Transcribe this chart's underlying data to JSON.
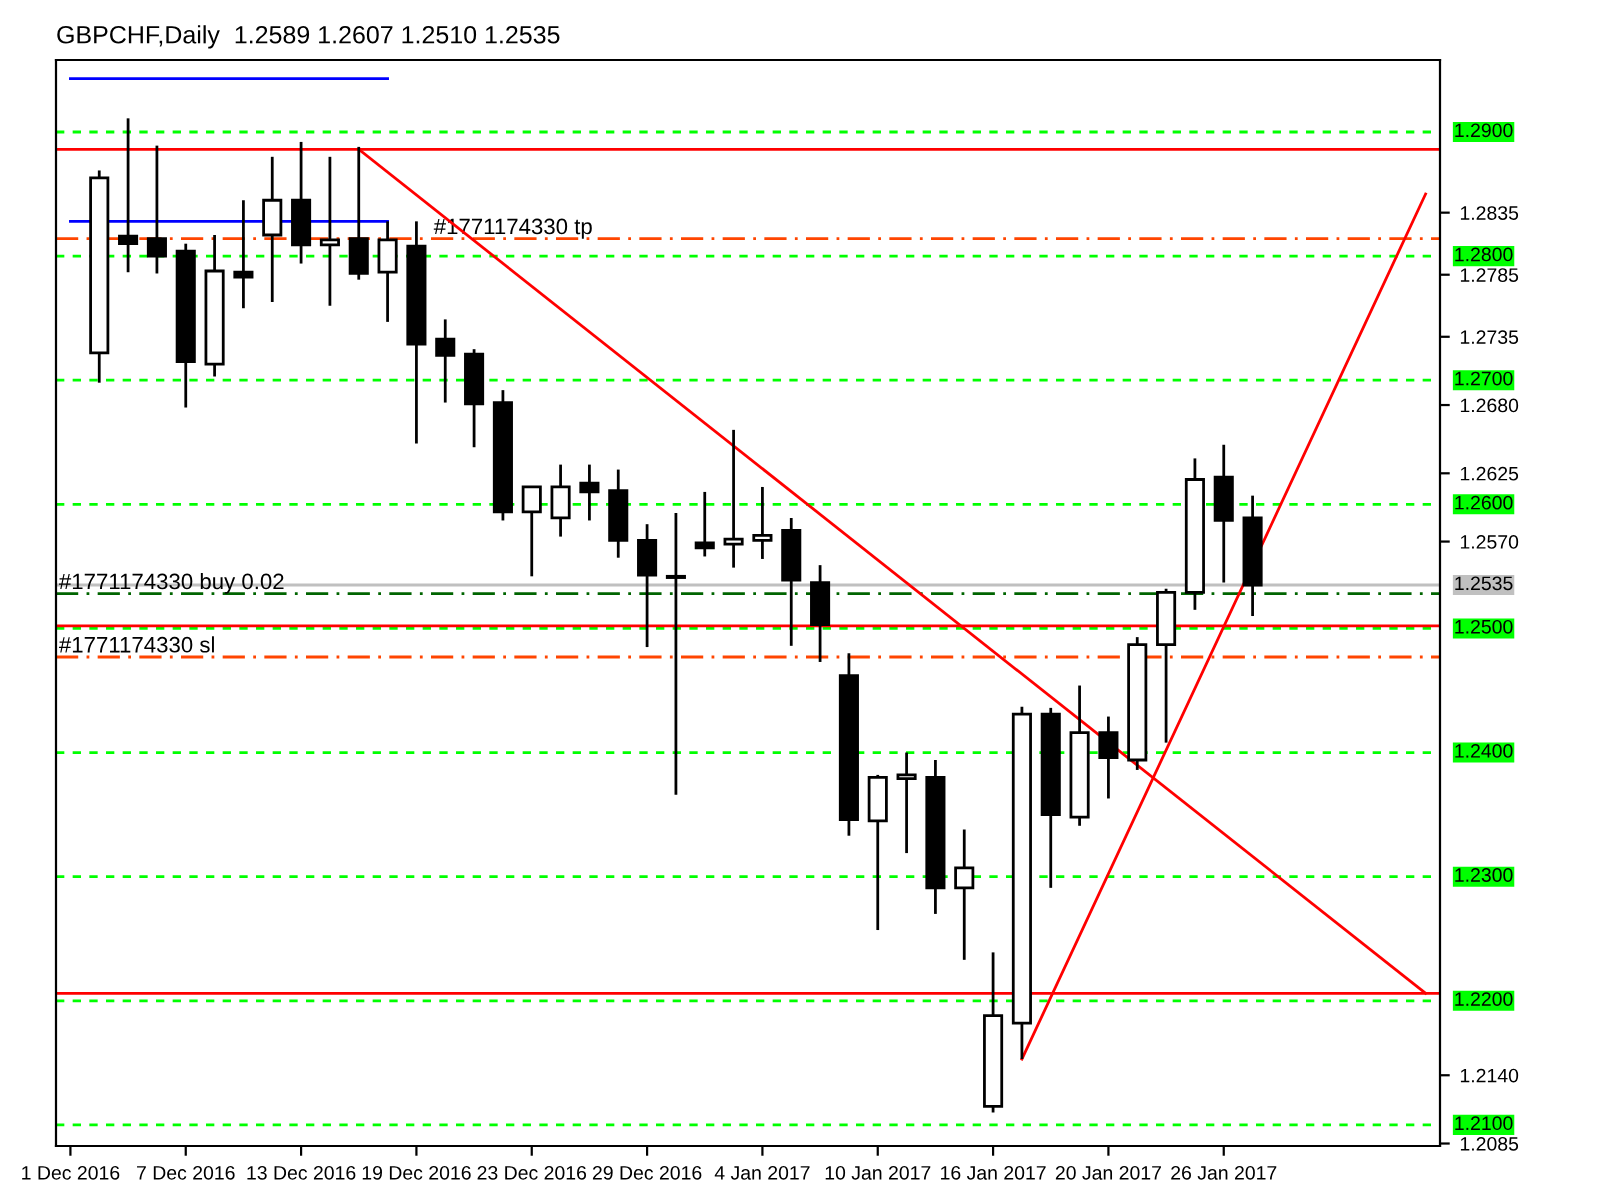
{
  "chart_data": {
    "type": "candlestick",
    "title": "GBPCHF,Daily  1.2589 1.2607 1.2510 1.2535",
    "categories": [
      "1 Dec 2016",
      null,
      null,
      null,
      "7 Dec 2016",
      null,
      null,
      null,
      "13 Dec 2016",
      null,
      null,
      null,
      "19 Dec 2016",
      null,
      null,
      null,
      "23 Dec 2016",
      null,
      null,
      null,
      "29 Dec 2016",
      null,
      null,
      null,
      "4 Jan 2017",
      null,
      null,
      null,
      "10 Jan 2017",
      null,
      null,
      null,
      "16 Jan 2017",
      null,
      null,
      null,
      "20 Jan 2017",
      null,
      null,
      null,
      "26 Jan 2017",
      null,
      null,
      null,
      null,
      null,
      null,
      null
    ],
    "ohlc": [
      null,
      [
        1.2722,
        1.2869,
        1.2698,
        1.2863
      ],
      [
        1.2816,
        1.2911,
        1.2787,
        1.281
      ],
      [
        1.2814,
        1.2889,
        1.2786,
        1.28
      ],
      [
        1.2804,
        1.281,
        1.2678,
        1.2715
      ],
      [
        1.2713,
        1.2817,
        1.2703,
        1.2788
      ],
      [
        1.2787,
        1.2845,
        1.2758,
        1.2783
      ],
      [
        1.2817,
        1.288,
        1.2763,
        1.2845
      ],
      [
        1.2845,
        1.2892,
        1.2794,
        1.2809
      ],
      [
        1.2809,
        1.288,
        1.276,
        1.2813
      ],
      [
        1.2814,
        1.2888,
        1.2781,
        1.2786
      ],
      [
        1.2787,
        1.2828,
        1.2747,
        1.2813
      ],
      [
        1.2808,
        1.2828,
        1.2649,
        1.2729
      ],
      [
        1.2733,
        1.2749,
        1.2682,
        1.272
      ],
      [
        1.2721,
        1.2725,
        1.2646,
        1.2681
      ],
      [
        1.2682,
        1.2692,
        1.2587,
        1.2594
      ],
      [
        1.2594,
        1.2614,
        1.2542,
        1.2614
      ],
      [
        1.2589,
        1.2632,
        1.2574,
        1.2614
      ],
      [
        1.2617,
        1.2632,
        1.2587,
        1.261
      ],
      [
        1.2611,
        1.2628,
        1.2557,
        1.2571
      ],
      [
        1.2571,
        1.2584,
        1.2485,
        1.2543
      ],
      [
        1.2542,
        1.2593,
        1.2366,
        1.2541
      ],
      [
        1.2569,
        1.261,
        1.2558,
        1.2565
      ],
      [
        1.2568,
        1.266,
        1.2549,
        1.2572
      ],
      [
        1.2571,
        1.2614,
        1.2556,
        1.2575
      ],
      [
        1.2579,
        1.2589,
        1.2486,
        1.2539
      ],
      [
        1.2537,
        1.2551,
        1.2473,
        1.2503
      ],
      [
        1.2462,
        1.248,
        1.2333,
        1.2346
      ],
      [
        1.2345,
        1.2382,
        1.2257,
        1.238
      ],
      [
        1.2379,
        1.24,
        1.2319,
        1.2382
      ],
      [
        1.238,
        1.2394,
        1.227,
        1.2291
      ],
      [
        1.2291,
        1.2338,
        1.2233,
        1.2307
      ],
      [
        1.2115,
        1.2239,
        1.211,
        1.2188
      ],
      [
        1.2182,
        1.2437,
        1.2153,
        1.2431
      ],
      [
        1.2431,
        1.2436,
        1.2291,
        1.235
      ],
      [
        1.2348,
        1.2454,
        1.2341,
        1.2416
      ],
      [
        1.2416,
        1.2429,
        1.2363,
        1.2396
      ],
      [
        1.2394,
        1.2493,
        1.2386,
        1.2487
      ],
      [
        1.2487,
        1.2532,
        1.2408,
        1.2529
      ],
      [
        1.2529,
        1.2637,
        1.2515,
        1.262
      ],
      [
        1.2622,
        1.2648,
        1.2537,
        1.2587
      ],
      [
        1.2589,
        1.2607,
        1.251,
        1.2535
      ],
      null,
      null,
      null,
      null,
      null,
      null
    ],
    "series": [
      {
        "type": "line",
        "color": "#ff0000",
        "values": [
          null,
          null,
          null,
          null,
          null,
          null,
          null,
          null,
          null,
          null,
          1.2886,
          null,
          null,
          null,
          null,
          null,
          null,
          null,
          null,
          null,
          null,
          null,
          null,
          null,
          null,
          null,
          null,
          null,
          null,
          null,
          null,
          null,
          null,
          null,
          null,
          null,
          null,
          null,
          null,
          null,
          null,
          null,
          null,
          null,
          null,
          null,
          null,
          1.2206
        ]
      },
      {
        "type": "line",
        "color": "#ff0000",
        "values": [
          null,
          null,
          null,
          null,
          null,
          null,
          null,
          null,
          null,
          null,
          null,
          null,
          null,
          null,
          null,
          null,
          null,
          null,
          null,
          null,
          null,
          null,
          null,
          null,
          null,
          null,
          null,
          null,
          null,
          null,
          null,
          null,
          null,
          1.2153,
          null,
          null,
          null,
          null,
          null,
          null,
          null,
          null,
          null,
          null,
          null,
          null,
          null,
          1.285
        ]
      },
      {
        "type": "line",
        "color": "#0000ff",
        "values": [
          1.2943,
          null,
          null,
          null,
          null,
          null,
          null,
          null,
          null,
          null,
          null,
          1.2943,
          null,
          null,
          null,
          null,
          null,
          null,
          null,
          null,
          null,
          null,
          null,
          null,
          null,
          null,
          null,
          null,
          null,
          null,
          null,
          null,
          null,
          null,
          null,
          null,
          null,
          null,
          null,
          null,
          null,
          null,
          null,
          null,
          null,
          null,
          null,
          null
        ]
      },
      {
        "type": "line",
        "color": "#0000ff",
        "values": [
          1.2828,
          null,
          null,
          null,
          null,
          null,
          null,
          null,
          null,
          null,
          null,
          1.2828,
          null,
          null,
          null,
          null,
          null,
          null,
          null,
          null,
          null,
          null,
          null,
          null,
          null,
          null,
          null,
          null,
          null,
          null,
          null,
          null,
          null,
          null,
          null,
          null,
          null,
          null,
          null,
          null,
          null,
          null,
          null,
          null,
          null,
          null,
          null,
          null
        ]
      }
    ],
    "ylim": [
      1.2083,
      1.2958
    ],
    "yticks": [
      {
        "value": 1.2835,
        "label": "1.2835"
      },
      {
        "value": 1.2785,
        "label": "1.2785"
      },
      {
        "value": 1.2735,
        "label": "1.2735"
      },
      {
        "value": 1.268,
        "label": "1.2680"
      },
      {
        "value": 1.2625,
        "label": "1.2625"
      },
      {
        "value": 1.257,
        "label": "1.2570"
      },
      {
        "value": 1.214,
        "label": "1.2140"
      },
      {
        "value": 1.2085,
        "label": "1.2085"
      }
    ],
    "ref_lines": [
      {
        "axis": "y",
        "value": 1.29,
        "label": "1.2900",
        "color": "#00ff00",
        "line_style": "dotted"
      },
      {
        "axis": "y",
        "value": 1.28,
        "label": "1.2800",
        "color": "#00ff00",
        "line_style": "dotted"
      },
      {
        "axis": "y",
        "value": 1.27,
        "label": "1.2700",
        "color": "#00ff00",
        "line_style": "dotted"
      },
      {
        "axis": "y",
        "value": 1.26,
        "label": "1.2600",
        "color": "#00ff00",
        "line_style": "dotted"
      },
      {
        "axis": "y",
        "value": 1.25,
        "label": "1.2500",
        "color": "#00ff00",
        "line_style": "dotted"
      },
      {
        "axis": "y",
        "value": 1.24,
        "label": "1.2400",
        "color": "#00ff00",
        "line_style": "dotted"
      },
      {
        "axis": "y",
        "value": 1.23,
        "label": "1.2300",
        "color": "#00ff00",
        "line_style": "dotted"
      },
      {
        "axis": "y",
        "value": 1.22,
        "label": "1.2200",
        "color": "#00ff00",
        "line_style": "dotted"
      },
      {
        "axis": "y",
        "value": 1.21,
        "label": "1.2100",
        "color": "#00ff00",
        "line_style": "dotted"
      },
      {
        "axis": "y",
        "value": 1.2886,
        "color": "#ff0000",
        "line_style": "solid"
      },
      {
        "axis": "y",
        "value": 1.2502,
        "color": "#ff0000",
        "line_style": "solid"
      },
      {
        "axis": "y",
        "value": 1.2206,
        "color": "#ff0000",
        "line_style": "solid"
      },
      {
        "axis": "y",
        "value": 1.2814,
        "label": "#1771174330 tp",
        "color": "#ff4500",
        "line_style": "dashed"
      },
      {
        "axis": "y",
        "value": 1.2528,
        "label": "#1771174330 buy 0.02",
        "color": "#006400",
        "line_style": "dashed"
      },
      {
        "axis": "y",
        "value": 1.2477,
        "label": "#1771174330 sl",
        "color": "#ff4500",
        "line_style": "dashed"
      },
      {
        "axis": "y",
        "value": 1.2535,
        "label": "1.2535",
        "color": "#c0c0c0",
        "line_style": "solid"
      }
    ]
  }
}
